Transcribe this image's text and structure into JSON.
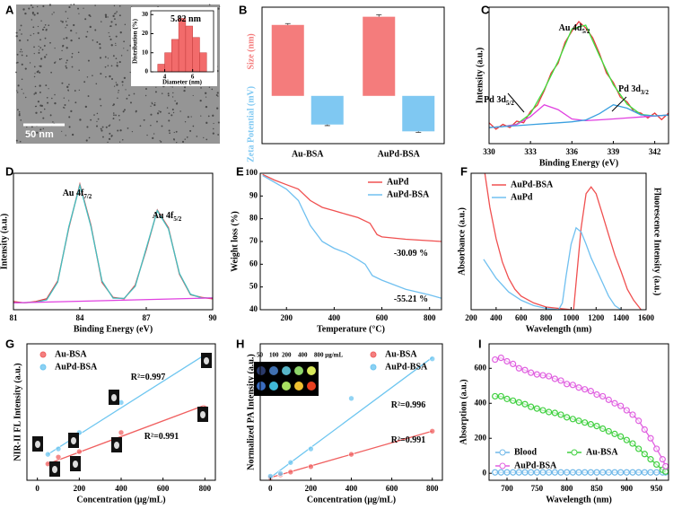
{
  "chart_data": [
    {
      "panel": "A",
      "type": "histogram",
      "scale_bar": "50 nm",
      "xlabel": "Diameter (nm)",
      "ylabel": "Distribution (%)",
      "bins": [
        3.5,
        4,
        4.5,
        5,
        5.5,
        6,
        6.5,
        7
      ],
      "values": [
        4,
        10,
        17,
        28,
        24,
        18,
        10
      ],
      "color": "#f26b6b",
      "xlim": [
        3,
        7.5
      ],
      "xticks": [
        4,
        6
      ],
      "ylim": [
        0,
        32
      ],
      "yticks": [
        0,
        10,
        20,
        30
      ],
      "annotations": [
        {
          "text": "5.82 nm"
        }
      ]
    },
    {
      "panel": "B",
      "type": "bar",
      "ylabel": "Size (nm)",
      "ylabel2": "Zeta Potential (mV)",
      "categories": [
        "Au-BSA",
        "AuPd-BSA"
      ],
      "ylim": [
        -35,
        65
      ],
      "series": [
        {
          "color": "#f47c7c",
          "values": [
            52,
            58
          ],
          "errors": [
            1,
            1.5
          ]
        },
        {
          "color": "#7fc8f2",
          "values": [
            -21,
            -26
          ],
          "errors": [
            0.8,
            0.8
          ]
        }
      ]
    },
    {
      "panel": "C",
      "type": "line",
      "xlabel": "Binding Energy (eV)",
      "ylabel": "Intensity (a.u.)",
      "xlim": [
        330,
        343
      ],
      "xticks": [
        330,
        333,
        336,
        339,
        342
      ],
      "ylim": [
        0,
        0.85
      ],
      "series": [
        {
          "color": "#e8383d",
          "x": [
            330,
            330.5,
            331,
            331.5,
            332,
            332.5,
            333,
            333.5,
            334,
            334.5,
            335,
            335.5,
            336,
            336.5,
            337,
            337.5,
            338,
            338.5,
            339,
            339.5,
            340,
            340.5,
            341,
            341.5,
            342,
            342.5,
            343
          ],
          "values": [
            0.13,
            0.09,
            0.12,
            0.1,
            0.14,
            0.13,
            0.2,
            0.24,
            0.33,
            0.44,
            0.5,
            0.63,
            0.7,
            0.76,
            0.72,
            0.66,
            0.56,
            0.44,
            0.38,
            0.29,
            0.26,
            0.2,
            0.19,
            0.16,
            0.19,
            0.15,
            0.19
          ]
        },
        {
          "color": "#3ee03e",
          "x": [
            330,
            331,
            332,
            333,
            334,
            335,
            336,
            337,
            338,
            339,
            340,
            341,
            342,
            343
          ],
          "values": [
            0.1,
            0.106,
            0.121,
            0.186,
            0.338,
            0.512,
            0.714,
            0.738,
            0.547,
            0.367,
            0.246,
            0.182,
            0.173,
            0.178
          ]
        },
        {
          "color": "#e040e0",
          "x": [
            330,
            331,
            332,
            333,
            334,
            335,
            336,
            337,
            338,
            339,
            340,
            341,
            342,
            343
          ],
          "values": [
            0.1,
            0.106,
            0.119,
            0.169,
            0.242,
            0.212,
            0.154,
            0.143,
            0.148,
            0.154,
            0.16,
            0.166,
            0.172,
            0.178
          ]
        },
        {
          "color": "#3aa0e0",
          "x": [
            330,
            331,
            332,
            333,
            334,
            335,
            336,
            337,
            338,
            339,
            340,
            341,
            342,
            343
          ],
          "values": [
            0.1,
            0.106,
            0.112,
            0.118,
            0.124,
            0.13,
            0.136,
            0.147,
            0.187,
            0.242,
            0.221,
            0.179,
            0.173,
            0.178
          ]
        }
      ],
      "annotations": [
        {
          "text": "Au 4d",
          "sub": "5/2"
        },
        {
          "text": "Pd 3d",
          "sub": "5/2"
        },
        {
          "text": "Pd 3d",
          "sub": "3/2"
        }
      ]
    },
    {
      "panel": "D",
      "type": "line",
      "xlabel": "Binding Energy (eV)",
      "ylabel": "Intensity (a.u.)",
      "xlim": [
        81,
        90
      ],
      "xticks": [
        81,
        84,
        87,
        90
      ],
      "ylim": [
        0,
        1
      ],
      "series": [
        {
          "color": "#e8383d",
          "x": [
            81,
            81.5,
            82,
            82.5,
            83,
            83.5,
            84,
            84.5,
            85,
            85.5,
            86,
            86.5,
            87,
            87.5,
            88,
            88.5,
            89,
            89.5,
            90
          ],
          "values": [
            0.06,
            0.05,
            0.06,
            0.08,
            0.21,
            0.6,
            0.92,
            0.62,
            0.2,
            0.09,
            0.08,
            0.18,
            0.44,
            0.73,
            0.6,
            0.26,
            0.11,
            0.09,
            0.08
          ]
        },
        {
          "color": "#40c0c0",
          "x": [
            81,
            81.5,
            82,
            82.5,
            83,
            83.5,
            84,
            84.5,
            85,
            85.5,
            86,
            86.5,
            87,
            87.5,
            88,
            88.5,
            89,
            89.5,
            90
          ],
          "values": [
            0.05,
            0.052,
            0.055,
            0.072,
            0.202,
            0.607,
            0.912,
            0.611,
            0.21,
            0.085,
            0.083,
            0.172,
            0.45,
            0.726,
            0.593,
            0.265,
            0.113,
            0.086,
            0.086
          ]
        },
        {
          "color": "#e040e0",
          "x": [
            81,
            90
          ],
          "values": [
            0.05,
            0.086
          ]
        }
      ],
      "annotations": [
        {
          "text": "Au 4f",
          "sub": "7/2"
        },
        {
          "text": "Au 4f",
          "sub": "5/2"
        }
      ]
    },
    {
      "panel": "E",
      "type": "line",
      "xlabel": "Temperature (°C)",
      "ylabel": "Weight loss (%)",
      "xlim": [
        90,
        850
      ],
      "xticks": [
        200,
        400,
        600,
        800
      ],
      "ylim": [
        40,
        100
      ],
      "yticks": [
        40,
        50,
        60,
        70,
        80,
        90,
        100
      ],
      "series": [
        {
          "name": "AuPd",
          "color": "#f05050",
          "x": [
            100,
            150,
            200,
            250,
            300,
            350,
            400,
            450,
            500,
            550,
            580,
            600,
            700,
            850
          ],
          "values": [
            99.5,
            97,
            95,
            93,
            88,
            85,
            83.5,
            82,
            80.5,
            78,
            73,
            72,
            71,
            70
          ]
        },
        {
          "name": "AuPd-BSA",
          "color": "#70c0f0",
          "x": [
            100,
            150,
            200,
            250,
            300,
            350,
            400,
            450,
            500,
            530,
            560,
            600,
            700,
            800,
            850
          ],
          "values": [
            99,
            96,
            93,
            88,
            77,
            70,
            67,
            65,
            62,
            60,
            55,
            53,
            49,
            46.5,
            45
          ]
        }
      ],
      "annotations": [
        {
          "text": "-30.09 %"
        },
        {
          "text": "-55.21 %"
        }
      ]
    },
    {
      "panel": "F",
      "type": "line",
      "xlabel": "Wavelength (nm)",
      "ylabel": "Absorbance (a.u.)",
      "y2label": "Fluorescence Intensity (a.u.)",
      "xlim": [
        200,
        1600
      ],
      "xticks": [
        200,
        400,
        600,
        800,
        1000,
        1200,
        1400,
        1600
      ],
      "ylim": [
        0,
        1
      ],
      "y2lim": [
        0,
        1
      ],
      "series": [
        {
          "name": "AuPd-BSA",
          "color": "#f05050",
          "x": [
            310,
            350,
            400,
            450,
            500,
            550,
            600,
            700,
            800,
            900,
            1000
          ],
          "values": [
            1,
            0.75,
            0.52,
            0.35,
            0.23,
            0.15,
            0.1,
            0.05,
            0.02,
            0.01,
            0
          ]
        },
        {
          "name": "AuPd",
          "color": "#70c0f0",
          "x": [
            300,
            350,
            400,
            500,
            600,
            700,
            800,
            900
          ],
          "values": [
            0.37,
            0.3,
            0.23,
            0.13,
            0.07,
            0.03,
            0.01,
            0
          ]
        },
        {
          "color": "#f05050",
          "axis": "y2",
          "x": [
            1020,
            1050,
            1080,
            1120,
            1160,
            1200,
            1250,
            1300,
            1350,
            1400,
            1450,
            1500,
            1560
          ],
          "values": [
            0,
            0.3,
            0.6,
            0.85,
            0.9,
            0.85,
            0.7,
            0.55,
            0.4,
            0.28,
            0.15,
            0.07,
            0
          ]
        },
        {
          "color": "#70c0f0",
          "axis": "y2",
          "x": [
            900,
            930,
            960,
            1000,
            1040,
            1080,
            1120,
            1160,
            1200,
            1250,
            1300,
            1350,
            1400
          ],
          "values": [
            0,
            0.05,
            0.25,
            0.48,
            0.6,
            0.57,
            0.48,
            0.38,
            0.3,
            0.2,
            0.1,
            0.03,
            0
          ]
        }
      ]
    },
    {
      "panel": "G",
      "type": "scatter",
      "xlabel": "Concentration (μg/mL)",
      "ylabel": "NIR-II FL Intensity (a.u.)",
      "xlim": [
        -50,
        850
      ],
      "xticks": [
        0,
        200,
        400,
        600,
        800
      ],
      "ylim": [
        0,
        1
      ],
      "x": [
        50,
        100,
        200,
        400,
        800
      ],
      "fit_x": [
        50,
        800
      ],
      "series": [
        {
          "name": "Au-BSA",
          "color": "#f06060",
          "values": [
            0.12,
            0.17,
            0.21,
            0.35,
            0.53
          ],
          "fit": [
            0.12,
            0.55
          ]
        },
        {
          "name": "AuPd-BSA",
          "color": "#6ec6f0",
          "values": [
            0.19,
            0.23,
            0.35,
            0.57,
            0.9
          ],
          "fit": [
            0.19,
            0.92
          ]
        }
      ],
      "annotations": [
        {
          "text": "R²=0.997"
        },
        {
          "text": "R²=0.991"
        }
      ]
    },
    {
      "panel": "H",
      "type": "scatter",
      "xlabel": "Concentration (μg/mL)",
      "ylabel": "Normalized PA Intensity (a.u.)",
      "xlim": [
        -50,
        850
      ],
      "xticks": [
        0,
        200,
        400,
        600,
        800
      ],
      "ylim": [
        0,
        1
      ],
      "x": [
        0,
        50,
        100,
        200,
        400,
        800
      ],
      "fit_x": [
        0,
        800
      ],
      "inset_labels": [
        "50",
        "100",
        "200",
        "400",
        "800 μg/mL"
      ],
      "series": [
        {
          "name": "Au-BSA",
          "color": "#f06060",
          "values": [
            0.02,
            0.04,
            0.06,
            0.1,
            0.19,
            0.36
          ],
          "fit": [
            0.02,
            0.36
          ]
        },
        {
          "name": "AuPd-BSA",
          "color": "#6ec6f0",
          "values": [
            0.03,
            0.05,
            0.13,
            0.23,
            0.6,
            0.89
          ],
          "fit": [
            0.02,
            0.9
          ]
        }
      ],
      "annotations": [
        {
          "text": "R²=0.996"
        },
        {
          "text": "R²=0.991"
        }
      ]
    },
    {
      "panel": "I",
      "type": "line",
      "markers": true,
      "xlabel": "Wavelength (nm)",
      "ylabel": "Absorption (a.u.)",
      "xlim": [
        670,
        970
      ],
      "xticks": [
        700,
        750,
        800,
        850,
        900,
        950
      ],
      "ylim": [
        -40,
        740
      ],
      "yticks": [
        0,
        200,
        400,
        600
      ],
      "x": [
        680,
        690,
        700,
        710,
        720,
        730,
        740,
        750,
        760,
        770,
        780,
        790,
        800,
        810,
        820,
        830,
        840,
        850,
        860,
        870,
        880,
        890,
        900,
        910,
        920,
        930,
        940,
        950,
        960,
        965
      ],
      "series": [
        {
          "name": "Blood",
          "color": "#70b8e8",
          "values": [
            5,
            5,
            5,
            5,
            5,
            5,
            5,
            5,
            5,
            5,
            5,
            5,
            5,
            5,
            5,
            5,
            5,
            5,
            5,
            5,
            5,
            5,
            5,
            5,
            5,
            5,
            5,
            5,
            5,
            5
          ]
        },
        {
          "name": "Au-BSA",
          "color": "#40d040",
          "values": [
            440,
            440,
            425,
            415,
            405,
            395,
            380,
            370,
            360,
            350,
            345,
            335,
            320,
            310,
            300,
            290,
            280,
            270,
            255,
            240,
            225,
            210,
            190,
            170,
            140,
            110,
            80,
            50,
            20,
            10
          ]
        },
        {
          "name": "AuPd-BSA",
          "color": "#e060e0",
          "values": [
            650,
            660,
            640,
            625,
            600,
            590,
            575,
            565,
            560,
            555,
            540,
            530,
            510,
            505,
            490,
            480,
            470,
            450,
            440,
            420,
            400,
            385,
            360,
            335,
            300,
            250,
            200,
            140,
            80,
            40
          ]
        }
      ]
    }
  ]
}
